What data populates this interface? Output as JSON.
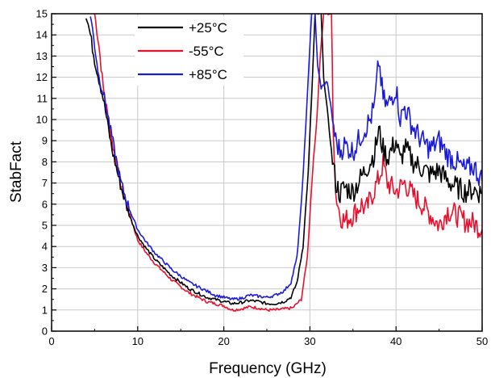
{
  "chart_data": {
    "type": "line",
    "xlabel": "Frequency (GHz)",
    "ylabel": "StabFact",
    "xlim": [
      0,
      50
    ],
    "ylim": [
      0,
      15
    ],
    "x_ticks": [
      0,
      10,
      20,
      30,
      40,
      50
    ],
    "y_ticks": [
      0,
      1,
      2,
      3,
      4,
      5,
      6,
      7,
      8,
      9,
      10,
      11,
      12,
      13,
      14,
      15
    ],
    "grid": true,
    "legend_position": "top-left",
    "series": [
      {
        "name": "+25°C",
        "color": "#000000",
        "points": [
          [
            4.0,
            15
          ],
          [
            4.5,
            14.0
          ],
          [
            5.0,
            12.8
          ],
          [
            6.0,
            11.0
          ],
          [
            7.0,
            8.6
          ],
          [
            8.0,
            6.9
          ],
          [
            9.0,
            5.5
          ],
          [
            10.0,
            4.5
          ],
          [
            11.0,
            3.9
          ],
          [
            12.0,
            3.4
          ],
          [
            13.0,
            3.0
          ],
          [
            14.0,
            2.6
          ],
          [
            15.0,
            2.3
          ],
          [
            16.0,
            2.0
          ],
          [
            17.0,
            1.8
          ],
          [
            18.0,
            1.6
          ],
          [
            19.0,
            1.5
          ],
          [
            20.0,
            1.4
          ],
          [
            21.0,
            1.3
          ],
          [
            22.0,
            1.35
          ],
          [
            23.0,
            1.45
          ],
          [
            24.0,
            1.4
          ],
          [
            25.0,
            1.3
          ],
          [
            26.0,
            1.3
          ],
          [
            27.0,
            1.4
          ],
          [
            27.8,
            1.6
          ],
          [
            28.5,
            2.3
          ],
          [
            29.2,
            4.0
          ],
          [
            29.8,
            7.5
          ],
          [
            30.3,
            12.0
          ],
          [
            30.6,
            15
          ],
          [
            31.3,
            15
          ],
          [
            31.6,
            12.0
          ],
          [
            32.0,
            10.5
          ],
          [
            32.5,
            8.5
          ],
          [
            33.0,
            7.0
          ],
          [
            33.5,
            6.5
          ],
          [
            34.0,
            6.8
          ],
          [
            35.0,
            6.6
          ],
          [
            36.0,
            7.3
          ],
          [
            37.0,
            8.0
          ],
          [
            37.5,
            8.4
          ],
          [
            38.0,
            9.5
          ],
          [
            38.5,
            8.6
          ],
          [
            39.0,
            8.2
          ],
          [
            40.0,
            9.0
          ],
          [
            40.5,
            8.0
          ],
          [
            41.0,
            8.7
          ],
          [
            42.0,
            8.0
          ],
          [
            43.0,
            7.7
          ],
          [
            44.0,
            7.4
          ],
          [
            45.0,
            7.6
          ],
          [
            46.0,
            7.1
          ],
          [
            47.0,
            6.8
          ],
          [
            48.0,
            6.6
          ],
          [
            49.0,
            6.7
          ],
          [
            50.0,
            6.5
          ]
        ]
      },
      {
        "name": "-55°C",
        "color": "#e8112d",
        "points": [
          [
            5.0,
            15
          ],
          [
            5.5,
            13.5
          ],
          [
            6.0,
            11.5
          ],
          [
            7.0,
            9.0
          ],
          [
            8.0,
            7.0
          ],
          [
            9.0,
            5.6
          ],
          [
            10.0,
            4.3
          ],
          [
            11.0,
            3.7
          ],
          [
            12.0,
            3.2
          ],
          [
            13.0,
            2.8
          ],
          [
            14.0,
            2.4
          ],
          [
            15.0,
            2.1
          ],
          [
            16.0,
            1.8
          ],
          [
            17.0,
            1.6
          ],
          [
            18.0,
            1.4
          ],
          [
            19.0,
            1.3
          ],
          [
            20.0,
            1.2
          ],
          [
            21.0,
            1.0
          ],
          [
            22.0,
            1.05
          ],
          [
            23.0,
            1.15
          ],
          [
            24.0,
            1.1
          ],
          [
            25.0,
            1.0
          ],
          [
            26.0,
            1.0
          ],
          [
            27.0,
            1.05
          ],
          [
            28.0,
            1.1
          ],
          [
            29.0,
            1.5
          ],
          [
            29.7,
            3.5
          ],
          [
            30.3,
            7.5
          ],
          [
            30.8,
            10.0
          ],
          [
            31.2,
            13.0
          ],
          [
            31.6,
            15
          ],
          [
            32.5,
            15
          ],
          [
            32.7,
            10.0
          ],
          [
            33.0,
            6.5
          ],
          [
            33.5,
            5.5
          ],
          [
            34.0,
            5.2
          ],
          [
            35.0,
            5.5
          ],
          [
            36.0,
            6.0
          ],
          [
            36.5,
            5.7
          ],
          [
            37.0,
            6.2
          ],
          [
            38.0,
            7.2
          ],
          [
            38.5,
            7.9
          ],
          [
            39.0,
            7.0
          ],
          [
            40.0,
            6.6
          ],
          [
            41.0,
            7.0
          ],
          [
            42.0,
            6.4
          ],
          [
            43.0,
            6.0
          ],
          [
            44.0,
            5.5
          ],
          [
            45.0,
            5.0
          ],
          [
            46.0,
            5.7
          ],
          [
            47.0,
            5.5
          ],
          [
            48.0,
            5.2
          ],
          [
            49.0,
            5.1
          ],
          [
            50.0,
            4.8
          ]
        ]
      },
      {
        "name": "+85°C",
        "color": "#1a1ad9",
        "points": [
          [
            4.5,
            15
          ],
          [
            5.0,
            13.5
          ],
          [
            5.5,
            12.0
          ],
          [
            6.0,
            11.3
          ],
          [
            7.0,
            9.2
          ],
          [
            8.0,
            7.1
          ],
          [
            9.0,
            5.8
          ],
          [
            10.0,
            4.8
          ],
          [
            11.0,
            4.2
          ],
          [
            12.0,
            3.7
          ],
          [
            13.0,
            3.3
          ],
          [
            14.0,
            2.9
          ],
          [
            15.0,
            2.6
          ],
          [
            16.0,
            2.3
          ],
          [
            17.0,
            2.1
          ],
          [
            18.0,
            1.9
          ],
          [
            19.0,
            1.7
          ],
          [
            20.0,
            1.6
          ],
          [
            21.0,
            1.5
          ],
          [
            22.0,
            1.55
          ],
          [
            23.0,
            1.7
          ],
          [
            24.0,
            1.65
          ],
          [
            25.0,
            1.6
          ],
          [
            26.0,
            1.7
          ],
          [
            27.0,
            1.9
          ],
          [
            27.8,
            2.3
          ],
          [
            28.5,
            3.5
          ],
          [
            29.0,
            6.0
          ],
          [
            29.5,
            9.5
          ],
          [
            29.8,
            12.0
          ],
          [
            30.2,
            15
          ],
          [
            30.6,
            15
          ],
          [
            30.9,
            12.5
          ],
          [
            31.3,
            11.5
          ],
          [
            32.0,
            11.8
          ],
          [
            33.0,
            9.0
          ],
          [
            33.5,
            8.5
          ],
          [
            34.0,
            8.8
          ],
          [
            35.0,
            8.5
          ],
          [
            36.0,
            9.3
          ],
          [
            37.0,
            10.0
          ],
          [
            37.5,
            10.6
          ],
          [
            38.0,
            12.8
          ],
          [
            38.5,
            11.0
          ],
          [
            39.0,
            10.6
          ],
          [
            40.0,
            11.5
          ],
          [
            40.5,
            10.0
          ],
          [
            41.0,
            10.6
          ],
          [
            42.0,
            9.6
          ],
          [
            43.0,
            9.0
          ],
          [
            44.0,
            8.6
          ],
          [
            45.0,
            9.0
          ],
          [
            46.0,
            8.3
          ],
          [
            47.0,
            8.0
          ],
          [
            48.0,
            7.6
          ],
          [
            49.0,
            7.8
          ],
          [
            50.0,
            7.1
          ]
        ]
      }
    ]
  }
}
